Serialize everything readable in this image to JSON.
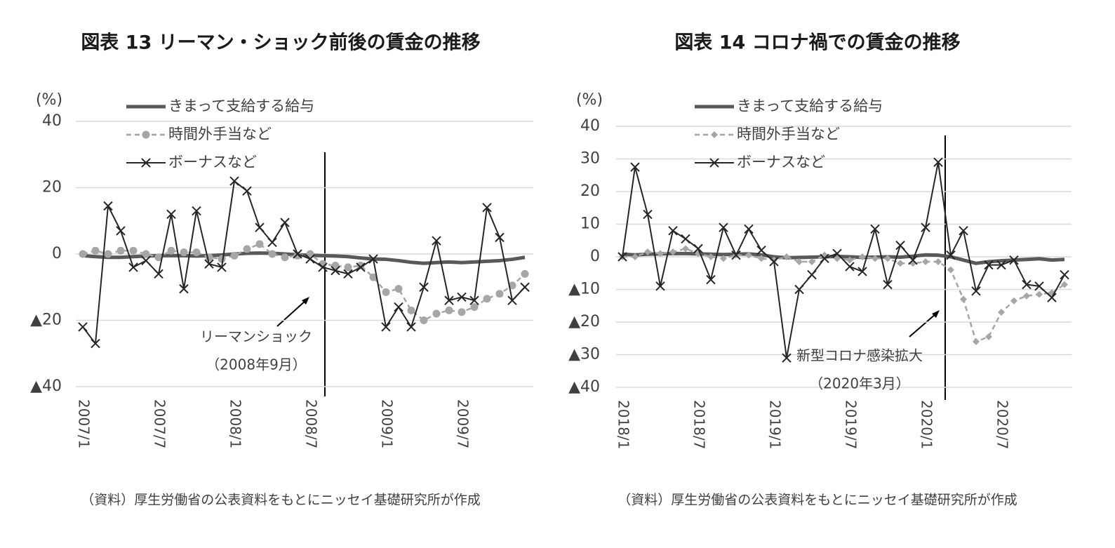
{
  "chart_data": [
    {
      "type": "line",
      "title": "図表 13 リーマン・ショック前後の賃金の推移",
      "y_unit": "(%)",
      "categories": [
        "2007/1",
        null,
        null,
        null,
        null,
        null,
        "2007/7",
        null,
        null,
        null,
        null,
        null,
        "2008/1",
        null,
        null,
        null,
        null,
        null,
        "2008/7",
        null,
        null,
        null,
        null,
        null,
        "2009/1",
        null,
        null,
        null,
        null,
        null,
        "2009/7",
        null,
        null,
        null,
        null,
        null
      ],
      "ylim": [
        -40,
        40
      ],
      "yticks": [
        {
          "value": -40,
          "label": "▲40"
        },
        {
          "value": -20,
          "label": "▲20"
        },
        0,
        20,
        40
      ],
      "grid": true,
      "series": [
        {
          "name": "きまって支給する給与",
          "color": "#595959",
          "style": "solid",
          "marker": "none",
          "line_width": 5,
          "values": [
            -0.5,
            -0.8,
            -1,
            -1,
            -0.8,
            -0.6,
            -0.5,
            -0.5,
            -0.5,
            -0.6,
            -0.5,
            -0.3,
            0,
            0.2,
            0.3,
            0.2,
            0,
            -0.2,
            -0.4,
            -0.5,
            -0.6,
            -0.8,
            -1.2,
            -1.5,
            -1.6,
            -2,
            -2.5,
            -2.8,
            -2.6,
            -2.4,
            -2.6,
            -2.4,
            -2.2,
            -2,
            -1.6,
            -1
          ]
        },
        {
          "name": "時間外手当など",
          "color": "#a6a6a6",
          "style": "dashed",
          "marker": "circle",
          "line_width": 2.5,
          "values": [
            0,
            1,
            0,
            1,
            1,
            0,
            -1,
            1,
            0.5,
            0.5,
            -1,
            -1.5,
            -0.5,
            1.5,
            3,
            0,
            -1,
            -0.5,
            0,
            -3,
            -3.5,
            -4,
            -3.5,
            -7,
            -11.5,
            -10.5,
            -17,
            -20,
            -18,
            -17,
            -17.5,
            -16,
            -13.5,
            -12,
            -9.5,
            -6
          ]
        },
        {
          "name": "ボーナスなど",
          "color": "#262626",
          "style": "solid",
          "marker": "x",
          "line_width": 2,
          "values": [
            -22,
            -27,
            14.5,
            7,
            -4,
            -2,
            -6,
            12,
            -10.5,
            13,
            -3,
            -4,
            22,
            19,
            8,
            3.5,
            9.5,
            0,
            -1.5,
            -4,
            -5,
            -6,
            -4,
            -1.5,
            -22,
            -16,
            -22,
            -10,
            4,
            -14,
            -13,
            -14,
            14,
            5,
            -14,
            -10
          ]
        }
      ],
      "annotation": [
        "リーマンショック",
        "（2008年9月）"
      ],
      "source": "（資料）厚生労働省の公表資料をもとにニッセイ基礎研究所が作成"
    },
    {
      "type": "line",
      "title": "図表 14 コロナ禍での賃金の推移",
      "y_unit": "(%)",
      "categories": [
        "2018/1",
        null,
        null,
        null,
        null,
        null,
        "2018/7",
        null,
        null,
        null,
        null,
        null,
        "2019/1",
        null,
        null,
        null,
        null,
        null,
        "2019/7",
        null,
        null,
        null,
        null,
        null,
        "2020/1",
        null,
        null,
        null,
        null,
        null,
        "2020/7",
        null,
        null,
        null,
        null,
        null
      ],
      "ylim": [
        -40,
        40
      ],
      "yticks": [
        {
          "value": -40,
          "label": "▲40"
        },
        {
          "value": -30,
          "label": "▲30"
        },
        {
          "value": -20,
          "label": "▲20"
        },
        {
          "value": -10,
          "label": "▲10"
        },
        0,
        10,
        20,
        30,
        40
      ],
      "grid": true,
      "series": [
        {
          "name": "きまって支給する給与",
          "color": "#595959",
          "style": "solid",
          "marker": "none",
          "line_width": 5,
          "values": [
            0.8,
            0.6,
            0.8,
            0.9,
            1,
            1,
            0.9,
            0.8,
            0.7,
            0.8,
            0.9,
            0.6,
            0,
            -0.3,
            -0.2,
            -0.1,
            0,
            0.1,
            0,
            -0.2,
            -0.1,
            0,
            -0.1,
            0.2,
            0.6,
            0.5,
            0,
            -1,
            -2,
            -1.5,
            -1.2,
            -1,
            -0.8,
            -0.6,
            -1,
            -0.8
          ]
        },
        {
          "name": "時間外手当など",
          "color": "#a6a6a6",
          "style": "dashed",
          "marker": "diamond",
          "line_width": 2.5,
          "values": [
            0,
            0,
            1.5,
            1,
            1.5,
            2.5,
            1,
            0,
            -0.5,
            0.5,
            0.5,
            -0.5,
            -1,
            0,
            -1.5,
            -1.5,
            0.5,
            -0.5,
            -1,
            0,
            -0.5,
            -0.5,
            -2,
            -2,
            -1.5,
            -1.5,
            -4,
            -13,
            -26,
            -24.5,
            -17,
            -13.5,
            -12,
            -11.5,
            -11,
            -8.5
          ]
        },
        {
          "name": "ボーナスなど",
          "color": "#262626",
          "style": "solid",
          "marker": "x",
          "line_width": 2,
          "values": [
            0,
            27.5,
            13,
            -9,
            8,
            5.5,
            2.5,
            -7,
            9,
            0.5,
            8.5,
            2,
            -1.5,
            -31,
            -10,
            -5.5,
            -0.5,
            1,
            -3,
            -4.5,
            8.5,
            -8.5,
            3.5,
            -1,
            9,
            29,
            0.5,
            8,
            -10.5,
            -2.5,
            -2.5,
            -1,
            -8.5,
            -9,
            -12.5,
            -5.5
          ]
        }
      ],
      "annotation": [
        "新型コロナ感染拡大",
        "（2020年3月）"
      ],
      "source": "（資料）厚生労働省の公表資料をもとにニッセイ基礎研究所が作成"
    }
  ]
}
